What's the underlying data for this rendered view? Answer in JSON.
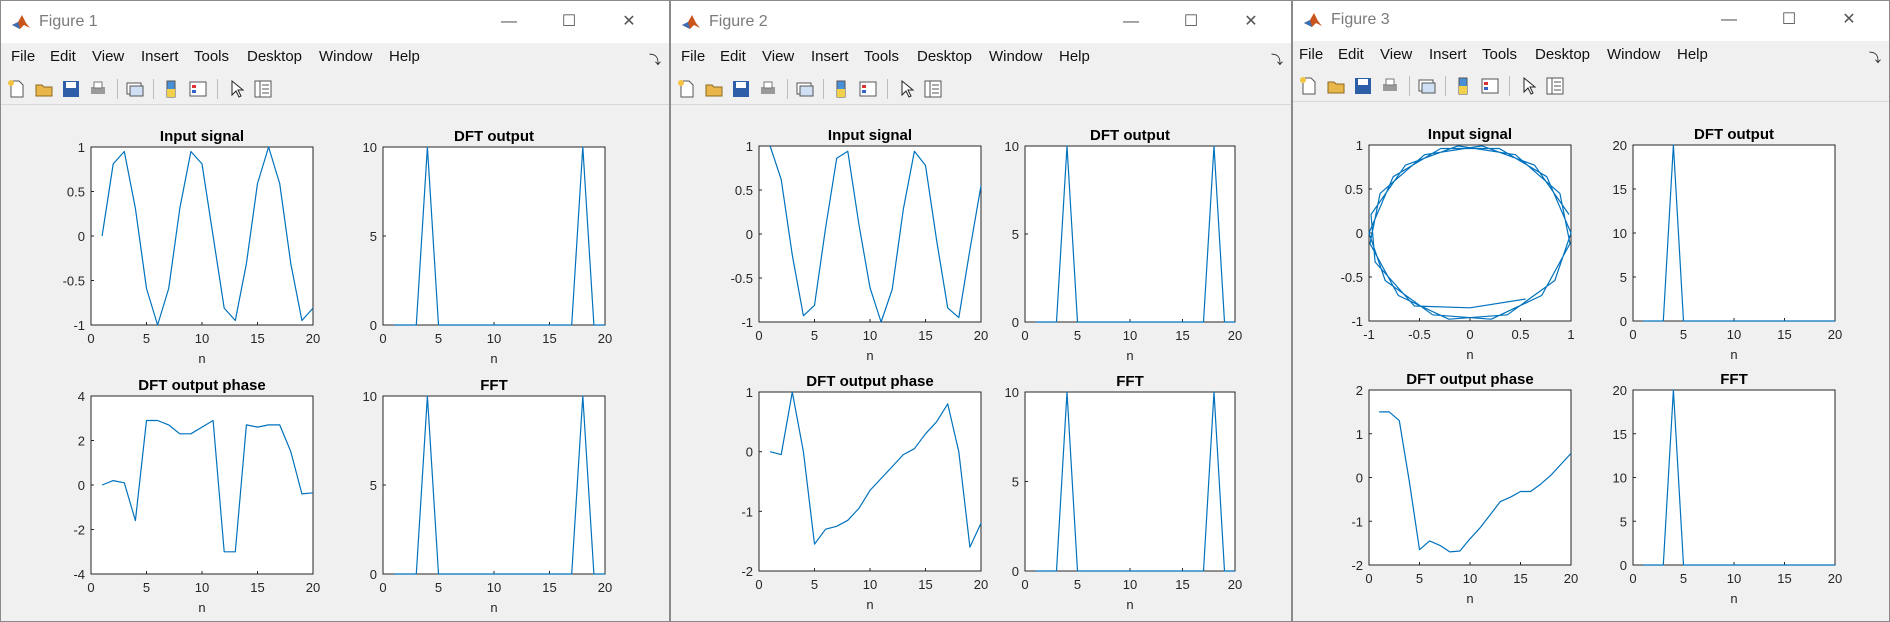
{
  "menu": [
    "File",
    "Edit",
    "View",
    "Insert",
    "Tools",
    "Desktop",
    "Window",
    "Help"
  ],
  "toolbar_icons": [
    "new-figure-icon",
    "open-file-icon",
    "save-icon",
    "print-icon",
    "link-icon",
    "colorbar-icon",
    "legend-icon",
    "pointer-icon",
    "property-inspector-icon"
  ],
  "window_controls": {
    "minimize": "—",
    "maximize": "☐",
    "close": "✕"
  },
  "colors": {
    "line": "#0072bd",
    "axes": "#262626",
    "window_bg": "#f0f0f0"
  },
  "windows": [
    {
      "title": "Figure 1",
      "plots": [
        {
          "title": "Input signal",
          "xlabel": "n",
          "xlim": [
            0,
            20
          ],
          "xticks": [
            "0",
            "5",
            "10",
            "15",
            "20"
          ],
          "ylim": [
            -1,
            1
          ],
          "yticks": [
            "-1",
            "-0.5",
            "0",
            "0.5",
            "1"
          ],
          "chart_data": {
            "type": "line",
            "x": [
              1,
              2,
              3,
              4,
              5,
              6,
              7,
              8,
              9,
              10,
              11,
              12,
              13,
              14,
              15,
              16,
              17,
              18,
              19,
              20
            ],
            "values": [
              0,
              0.81,
              0.95,
              0.31,
              -0.59,
              -1,
              -0.59,
              0.31,
              0.95,
              0.81,
              0,
              -0.81,
              -0.95,
              -0.31,
              0.59,
              1,
              0.59,
              -0.31,
              -0.95,
              -0.81
            ]
          }
        },
        {
          "title": "DFT output",
          "xlabel": "n",
          "xlim": [
            0,
            20
          ],
          "xticks": [
            "0",
            "5",
            "10",
            "15",
            "20"
          ],
          "ylim": [
            0,
            10
          ],
          "yticks": [
            "0",
            "5",
            "10"
          ],
          "chart_data": {
            "type": "line",
            "x": [
              1,
              2,
              3,
              4,
              5,
              6,
              7,
              8,
              9,
              10,
              11,
              12,
              13,
              14,
              15,
              16,
              17,
              18,
              19,
              20
            ],
            "values": [
              0,
              0,
              0,
              10,
              0,
              0,
              0,
              0,
              0,
              0,
              0,
              0,
              0,
              0,
              0,
              0,
              0,
              10,
              0,
              0
            ]
          }
        },
        {
          "title": "DFT output phase",
          "xlabel": "n",
          "xlim": [
            0,
            20
          ],
          "xticks": [
            "0",
            "5",
            "10",
            "15",
            "20"
          ],
          "ylim": [
            -4,
            4
          ],
          "yticks": [
            "-4",
            "-2",
            "0",
            "2",
            "4"
          ],
          "chart_data": {
            "type": "line",
            "x": [
              1,
              2,
              3,
              4,
              5,
              6,
              7,
              8,
              9,
              10,
              11,
              12,
              13,
              14,
              15,
              16,
              17,
              18,
              19,
              20
            ],
            "values": [
              0,
              0.2,
              0.1,
              -1.6,
              2.9,
              2.9,
              2.7,
              2.3,
              2.3,
              2.6,
              2.9,
              -3.0,
              -3.0,
              2.7,
              2.6,
              2.7,
              2.7,
              1.5,
              -0.4,
              -0.35
            ]
          }
        },
        {
          "title": "FFT",
          "xlabel": "n",
          "xlim": [
            0,
            20
          ],
          "xticks": [
            "0",
            "5",
            "10",
            "15",
            "20"
          ],
          "ylim": [
            0,
            10
          ],
          "yticks": [
            "0",
            "5",
            "10"
          ],
          "chart_data": {
            "type": "line",
            "x": [
              1,
              2,
              3,
              4,
              5,
              6,
              7,
              8,
              9,
              10,
              11,
              12,
              13,
              14,
              15,
              16,
              17,
              18,
              19,
              20
            ],
            "values": [
              0,
              0,
              0,
              10,
              0,
              0,
              0,
              0,
              0,
              0,
              0,
              0,
              0,
              0,
              0,
              0,
              0,
              10,
              0,
              0
            ]
          }
        }
      ]
    },
    {
      "title": "Figure 2",
      "plots": [
        {
          "title": "Input signal",
          "xlabel": "n",
          "xlim": [
            0,
            20
          ],
          "xticks": [
            "0",
            "5",
            "10",
            "15",
            "20"
          ],
          "ylim": [
            -1,
            1
          ],
          "yticks": [
            "-1",
            "-0.5",
            "0",
            "0.5",
            "1"
          ],
          "chart_data": {
            "type": "line",
            "x": [
              1,
              2,
              3,
              4,
              5,
              6,
              7,
              8,
              9,
              10,
              11,
              12,
              13,
              14,
              15,
              16,
              17,
              18,
              19,
              20
            ],
            "values": [
              1,
              0.62,
              -0.24,
              -0.93,
              -0.81,
              0.07,
              0.86,
              0.94,
              0.11,
              -0.61,
              -1,
              -0.63,
              0.28,
              0.94,
              0.78,
              -0.07,
              -0.84,
              -0.95,
              -0.18,
              0.55
            ]
          }
        },
        {
          "title": "DFT output",
          "xlabel": "n",
          "xlim": [
            0,
            20
          ],
          "xticks": [
            "0",
            "5",
            "10",
            "15",
            "20"
          ],
          "ylim": [
            0,
            10
          ],
          "yticks": [
            "0",
            "5",
            "10"
          ],
          "chart_data": {
            "type": "line",
            "x": [
              1,
              2,
              3,
              4,
              5,
              6,
              7,
              8,
              9,
              10,
              11,
              12,
              13,
              14,
              15,
              16,
              17,
              18,
              19,
              20
            ],
            "values": [
              0,
              0,
              0,
              10,
              0,
              0,
              0,
              0,
              0,
              0,
              0,
              0,
              0,
              0,
              0,
              0,
              0,
              10,
              0,
              0
            ]
          }
        },
        {
          "title": "DFT output phase",
          "xlabel": "n",
          "xlim": [
            0,
            20
          ],
          "xticks": [
            "0",
            "5",
            "10",
            "15",
            "20"
          ],
          "ylim": [
            -2,
            1
          ],
          "yticks": [
            "-2",
            "-1",
            "0",
            "1"
          ],
          "chart_data": {
            "type": "line",
            "x": [
              1,
              2,
              3,
              4,
              5,
              6,
              7,
              8,
              9,
              10,
              11,
              12,
              13,
              14,
              15,
              16,
              17,
              18,
              19,
              20
            ],
            "values": [
              0,
              -0.05,
              1.0,
              0,
              -1.55,
              -1.3,
              -1.25,
              -1.15,
              -0.95,
              -0.65,
              -0.45,
              -0.25,
              -0.05,
              0.05,
              0.3,
              0.5,
              0.8,
              0,
              -1.6,
              -1.2
            ]
          }
        },
        {
          "title": "FFT",
          "xlabel": "n",
          "xlim": [
            0,
            20
          ],
          "xticks": [
            "0",
            "5",
            "10",
            "15",
            "20"
          ],
          "ylim": [
            0,
            10
          ],
          "yticks": [
            "0",
            "5",
            "10"
          ],
          "chart_data": {
            "type": "line",
            "x": [
              1,
              2,
              3,
              4,
              5,
              6,
              7,
              8,
              9,
              10,
              11,
              12,
              13,
              14,
              15,
              16,
              17,
              18,
              19,
              20
            ],
            "values": [
              0,
              0,
              0,
              10,
              0,
              0,
              0,
              0,
              0,
              0,
              0,
              0,
              0,
              0,
              0,
              0,
              0,
              10,
              0,
              0
            ]
          }
        }
      ]
    },
    {
      "title": "Figure 3",
      "plots": [
        {
          "title": "Input signal",
          "xlabel": "n",
          "xlim": [
            -1,
            1
          ],
          "xticks": [
            "-1",
            "-0.5",
            "0",
            "0.5",
            "1"
          ],
          "ylim": [
            -1,
            1
          ],
          "yticks": [
            "-1",
            "-0.5",
            "0",
            "0.5",
            "1"
          ],
          "chart_data": {
            "type": "line",
            "x": [
              0.98,
              0.64,
              0.12,
              -0.45,
              -0.89,
              -0.99,
              -0.71,
              -0.21,
              0.37,
              0.84,
              1.0,
              0.76,
              0.29,
              -0.29,
              -0.76,
              -1.0,
              -0.84,
              -0.37,
              0.21,
              0.71,
              0.99,
              0.89,
              0.45,
              -0.12,
              -0.64,
              -0.98,
              -0.94,
              -0.55,
              0.0,
              0.55
            ],
            "values": [
              0.21,
              0.77,
              0.99,
              0.89,
              0.45,
              -0.12,
              -0.71,
              -0.98,
              -0.93,
              -0.54,
              0.0,
              0.64,
              0.96,
              0.96,
              0.64,
              0.0,
              -0.54,
              -0.93,
              -0.98,
              -0.71,
              -0.12,
              0.45,
              0.89,
              0.99,
              0.77,
              0.21,
              -0.33,
              -0.83,
              -0.85,
              -0.75
            ]
          }
        },
        {
          "title": "DFT output",
          "xlabel": "n",
          "xlim": [
            0,
            20
          ],
          "xticks": [
            "0",
            "5",
            "10",
            "15",
            "20"
          ],
          "ylim": [
            0,
            20
          ],
          "yticks": [
            "0",
            "5",
            "10",
            "15",
            "20"
          ],
          "chart_data": {
            "type": "line",
            "x": [
              1,
              2,
              3,
              4,
              5,
              6,
              7,
              8,
              9,
              10,
              11,
              12,
              13,
              14,
              15,
              16,
              17,
              18,
              19,
              20
            ],
            "values": [
              0,
              0,
              0,
              20,
              0,
              0,
              0,
              0,
              0,
              0,
              0,
              0,
              0,
              0,
              0,
              0,
              0,
              0,
              0,
              0
            ]
          }
        },
        {
          "title": "DFT output phase",
          "xlabel": "n",
          "xlim": [
            0,
            20
          ],
          "xticks": [
            "0",
            "5",
            "10",
            "15",
            "20"
          ],
          "ylim": [
            -2,
            2
          ],
          "yticks": [
            "-2",
            "-1",
            "0",
            "1",
            "2"
          ],
          "chart_data": {
            "type": "line",
            "x": [
              1,
              2,
              3,
              4,
              5,
              6,
              7,
              8,
              9,
              10,
              11,
              12,
              13,
              14,
              15,
              16,
              17,
              18,
              19,
              20
            ],
            "values": [
              1.5,
              1.5,
              1.3,
              -0.1,
              -1.65,
              -1.45,
              -1.55,
              -1.7,
              -1.68,
              -1.4,
              -1.15,
              -0.85,
              -0.55,
              -0.45,
              -0.32,
              -0.32,
              -0.15,
              0.05,
              0.3,
              0.55
            ]
          }
        },
        {
          "title": "FFT",
          "xlabel": "n",
          "xlim": [
            0,
            20
          ],
          "xticks": [
            "0",
            "5",
            "10",
            "15",
            "20"
          ],
          "ylim": [
            0,
            20
          ],
          "yticks": [
            "0",
            "5",
            "10",
            "15",
            "20"
          ],
          "chart_data": {
            "type": "line",
            "x": [
              1,
              2,
              3,
              4,
              5,
              6,
              7,
              8,
              9,
              10,
              11,
              12,
              13,
              14,
              15,
              16,
              17,
              18,
              19,
              20
            ],
            "values": [
              0,
              0,
              0,
              20,
              0,
              0,
              0,
              0,
              0,
              0,
              0,
              0,
              0,
              0,
              0,
              0,
              0,
              0,
              0,
              0
            ]
          }
        }
      ]
    }
  ]
}
